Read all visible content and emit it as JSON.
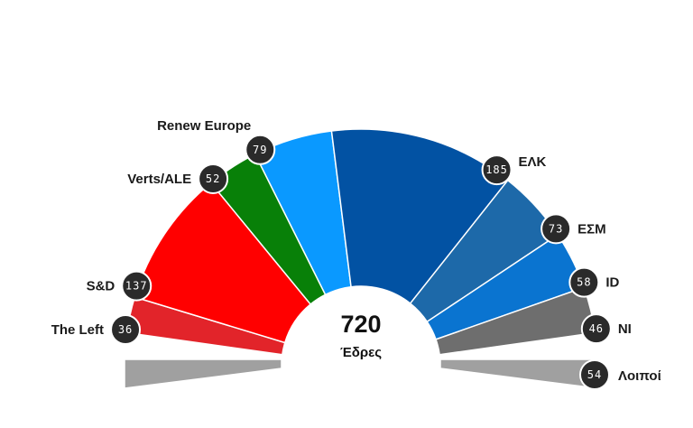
{
  "chart_data": {
    "type": "parliament-hemicycle",
    "total": {
      "value": "720",
      "label": "Έδρες"
    },
    "parties": [
      {
        "name": "The Left",
        "seats": 36,
        "color": "#e2242a"
      },
      {
        "name": "S&D",
        "seats": 137,
        "color": "#ff0000"
      },
      {
        "name": "Verts/ALE",
        "seats": 52,
        "color": "#088008"
      },
      {
        "name": "Renew Europe",
        "seats": 79,
        "color": "#0a99ff"
      },
      {
        "name": "ΕΛΚ",
        "seats": 185,
        "color": "#0252a3"
      },
      {
        "name": "ΕΣΜ",
        "seats": 73,
        "color": "#1d69a9"
      },
      {
        "name": "ID",
        "seats": 58,
        "color": "#0a74d0"
      },
      {
        "name": "NI",
        "seats": 46,
        "color": "#6e6e6e"
      },
      {
        "name": "Λοιποί",
        "seats": 54,
        "color": "#a0a0a0"
      }
    ]
  }
}
